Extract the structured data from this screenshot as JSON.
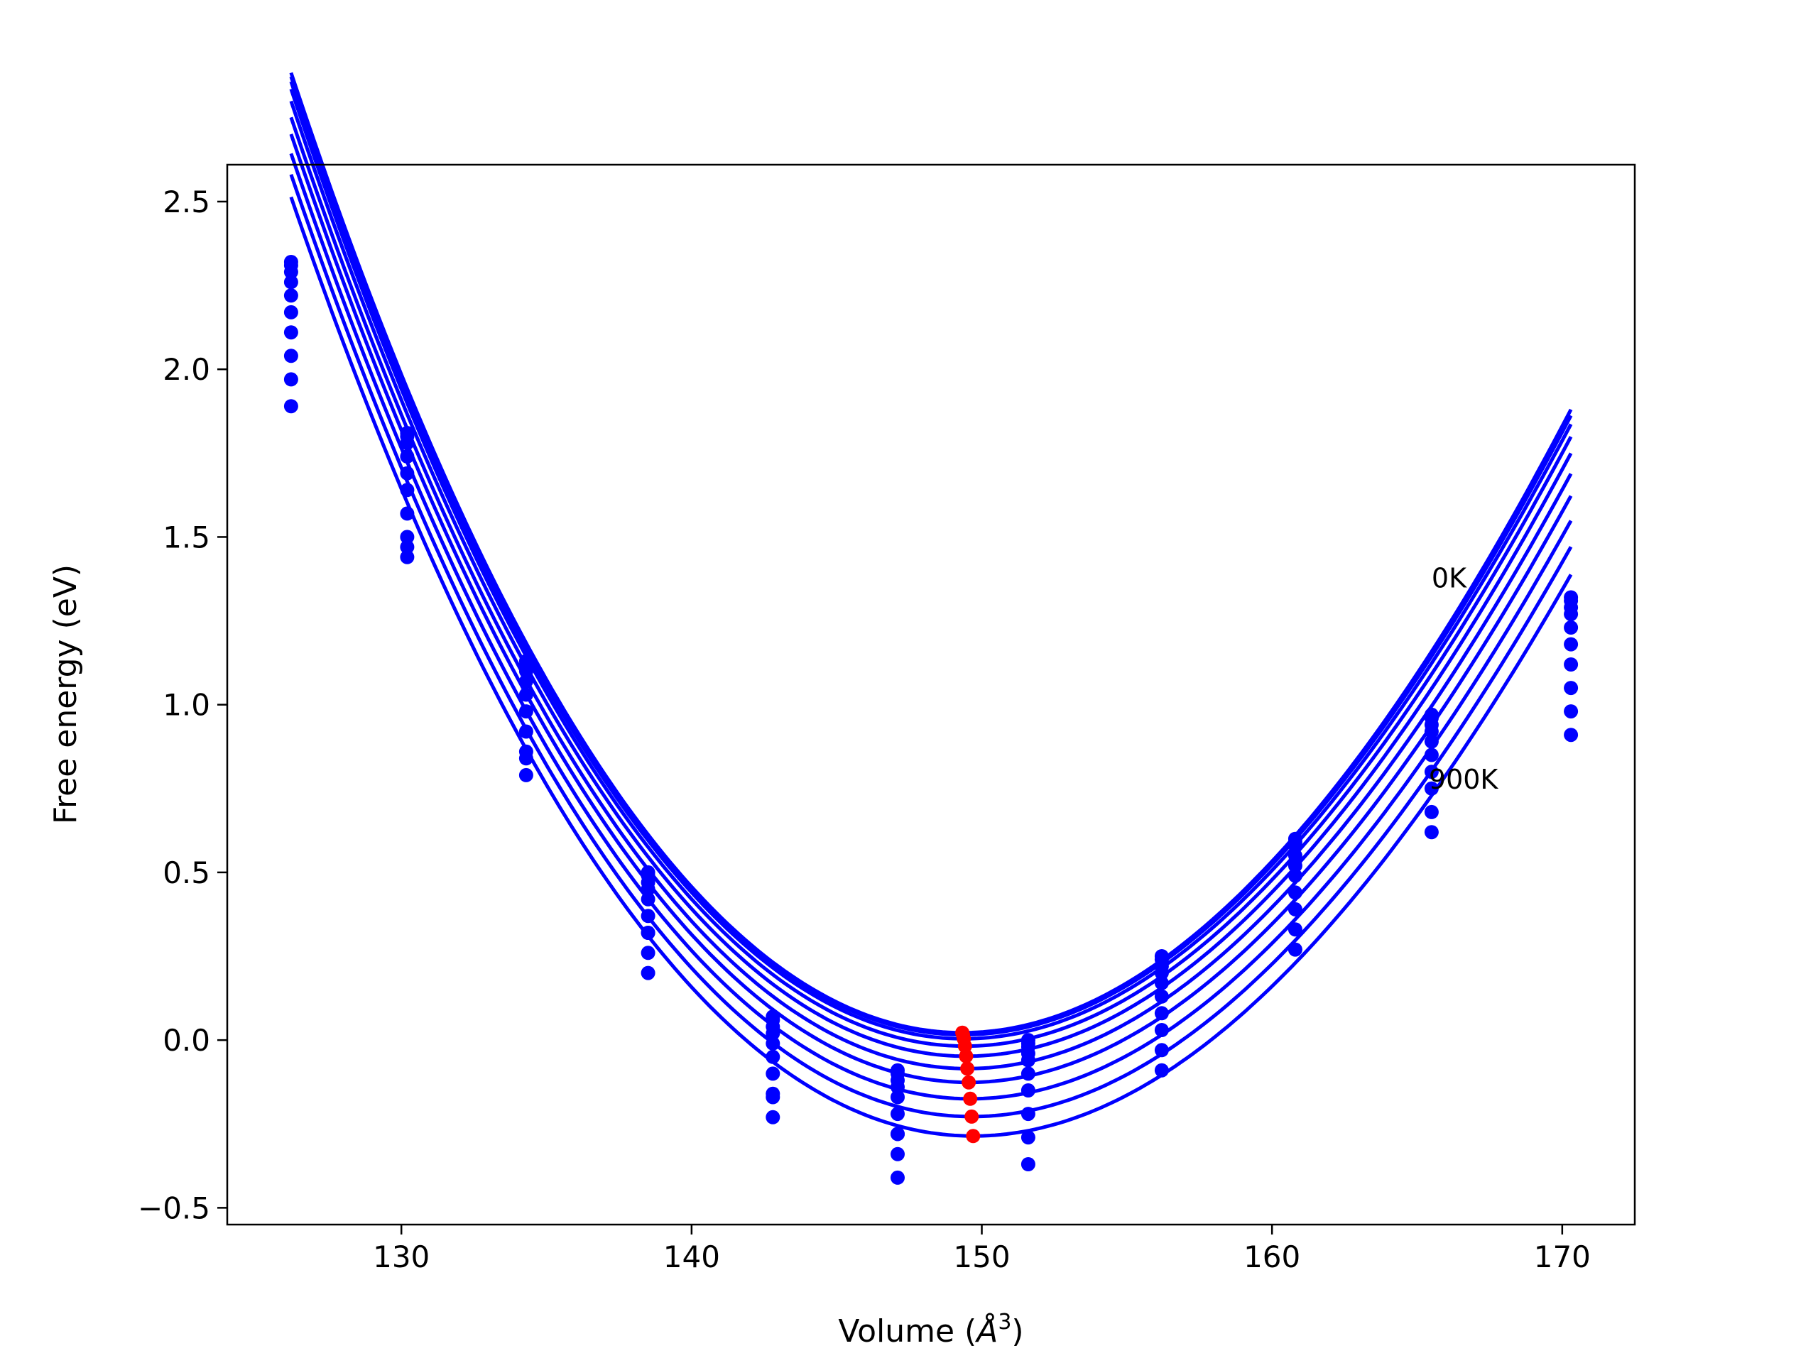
{
  "chart_data": {
    "type": "scatter",
    "xlabel": "Volume (Å³)",
    "xlabel_main": "Volume (",
    "xlabel_unit": "Å",
    "xlabel_exp": "3",
    "xlabel_end": ")",
    "ylabel": "Free energy (eV)",
    "xlim": [
      124.0,
      172.5
    ],
    "ylim": [
      -0.55,
      2.61
    ],
    "xticks": [
      130,
      140,
      150,
      160,
      170
    ],
    "xtick_labels": [
      "130",
      "140",
      "150",
      "160",
      "170"
    ],
    "yticks": [
      -0.5,
      0.0,
      0.5,
      1.0,
      1.5,
      2.0,
      2.5
    ],
    "ytick_labels": [
      "−0.5",
      "0.0",
      "0.5",
      "1.0",
      "1.5",
      "2.0",
      "2.5"
    ],
    "line_color": "#0000ff",
    "point_color": "#0000ff",
    "minima_color": "#ff0000",
    "annotations": [
      {
        "text": "0K",
        "x": 165.5,
        "y": 1.35
      },
      {
        "text": "900K",
        "x": 165.4,
        "y": 0.75
      }
    ],
    "volumes": [
      126.2,
      130.2,
      134.3,
      138.5,
      142.8,
      147.1,
      151.6,
      156.2,
      160.8,
      165.5,
      170.3
    ],
    "fit_range": [
      126.2,
      170.3
    ],
    "curves": [
      {
        "v0": 149.33,
        "e0": 0.022,
        "a": 0.00476,
        "b": 2.55e-05
      },
      {
        "v0": 149.35,
        "e0": 0.016,
        "a": 0.00474,
        "b": 2.55e-05
      },
      {
        "v0": 149.38,
        "e0": 0.004,
        "a": 0.00472,
        "b": 2.55e-05
      },
      {
        "v0": 149.42,
        "e0": -0.018,
        "a": 0.0047,
        "b": 2.55e-05
      },
      {
        "v0": 149.46,
        "e0": -0.048,
        "a": 0.00467,
        "b": 2.55e-05
      },
      {
        "v0": 149.5,
        "e0": -0.085,
        "a": 0.00463,
        "b": 2.55e-05
      },
      {
        "v0": 149.55,
        "e0": -0.126,
        "a": 0.00459,
        "b": 2.55e-05
      },
      {
        "v0": 149.6,
        "e0": -0.175,
        "a": 0.00455,
        "b": 2.55e-05
      },
      {
        "v0": 149.65,
        "e0": -0.228,
        "a": 0.00451,
        "b": 2.55e-05
      },
      {
        "v0": 149.7,
        "e0": -0.286,
        "a": 0.00447,
        "b": 2.55e-05
      }
    ],
    "series": [
      {
        "values": [
          2.32,
          1.81,
          1.13,
          0.5,
          0.07,
          -0.09,
          0.0,
          0.25,
          0.6,
          0.97,
          1.32
        ]
      },
      {
        "values": [
          2.31,
          1.8,
          1.12,
          0.49,
          0.06,
          -0.1,
          -0.01,
          0.24,
          0.59,
          0.96,
          1.31
        ]
      },
      {
        "values": [
          2.29,
          1.78,
          1.1,
          0.47,
          0.04,
          -0.12,
          -0.02,
          0.22,
          0.58,
          0.94,
          1.29
        ]
      },
      {
        "values": [
          2.26,
          1.74,
          1.07,
          0.45,
          0.02,
          -0.14,
          -0.04,
          0.2,
          0.55,
          0.92,
          1.27
        ]
      },
      {
        "values": [
          2.22,
          1.69,
          1.03,
          0.42,
          -0.01,
          -0.17,
          -0.06,
          0.17,
          0.52,
          0.89,
          1.23
        ]
      },
      {
        "values": [
          2.17,
          1.64,
          0.98,
          0.37,
          -0.05,
          -0.22,
          -0.1,
          0.13,
          0.49,
          0.85,
          1.18
        ]
      },
      {
        "values": [
          2.11,
          1.57,
          0.92,
          0.32,
          -0.1,
          -0.28,
          -0.15,
          0.08,
          0.44,
          0.8,
          1.12
        ]
      },
      {
        "values": [
          2.04,
          1.5,
          0.86,
          0.26,
          -0.16,
          -0.34,
          -0.22,
          0.03,
          0.39,
          0.75,
          1.05
        ]
      },
      {
        "values": [
          1.97,
          1.44,
          0.79,
          0.2,
          -0.23,
          -0.41,
          -0.29,
          -0.03,
          0.33,
          0.68,
          0.98
        ]
      },
      {
        "values": [
          1.89,
          1.47,
          0.84,
          0.32,
          -0.17,
          -0.28,
          -0.37,
          -0.09,
          0.27,
          0.62,
          0.91
        ]
      }
    ],
    "minima": [
      {
        "x": 149.33,
        "y": 0.022
      },
      {
        "x": 149.35,
        "y": 0.016
      },
      {
        "x": 149.38,
        "y": 0.004
      },
      {
        "x": 149.42,
        "y": -0.018
      },
      {
        "x": 149.46,
        "y": -0.048
      },
      {
        "x": 149.5,
        "y": -0.085
      },
      {
        "x": 149.55,
        "y": -0.126
      },
      {
        "x": 149.6,
        "y": -0.175
      },
      {
        "x": 149.65,
        "y": -0.228
      },
      {
        "x": 149.7,
        "y": -0.286
      }
    ]
  }
}
